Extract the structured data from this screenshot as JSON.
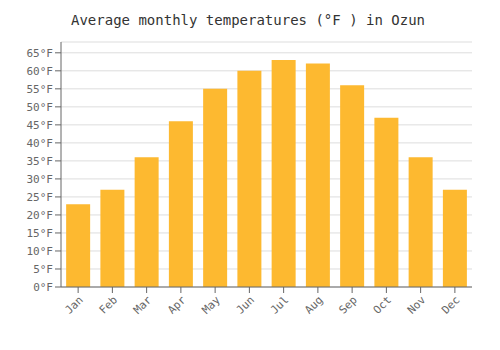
{
  "chart_data": {
    "type": "bar",
    "title": "Average monthly temperatures (°F ) in Ozun",
    "categories": [
      "Jan",
      "Feb",
      "Mar",
      "Apr",
      "May",
      "Jun",
      "Jul",
      "Aug",
      "Sep",
      "Oct",
      "Nov",
      "Dec"
    ],
    "values": [
      23,
      27,
      36,
      46,
      55,
      60,
      63,
      62,
      56,
      47,
      36,
      27
    ],
    "color": "#FDB930",
    "ylim": [
      0,
      68
    ],
    "yticks": [
      {
        "value": 0,
        "label": "0°F"
      },
      {
        "value": 5,
        "label": "5°F"
      },
      {
        "value": 10,
        "label": "10°F"
      },
      {
        "value": 15,
        "label": "15°F"
      },
      {
        "value": 20,
        "label": "20°F"
      },
      {
        "value": 25,
        "label": "25°F"
      },
      {
        "value": 30,
        "label": "30°F"
      },
      {
        "value": 35,
        "label": "35°F"
      },
      {
        "value": 40,
        "label": "40°F"
      },
      {
        "value": 45,
        "label": "45°F"
      },
      {
        "value": 50,
        "label": "50°F"
      },
      {
        "value": 55,
        "label": "55°F"
      },
      {
        "value": 60,
        "label": "60°F"
      },
      {
        "value": 65,
        "label": "65°F"
      }
    ],
    "grid": true
  }
}
